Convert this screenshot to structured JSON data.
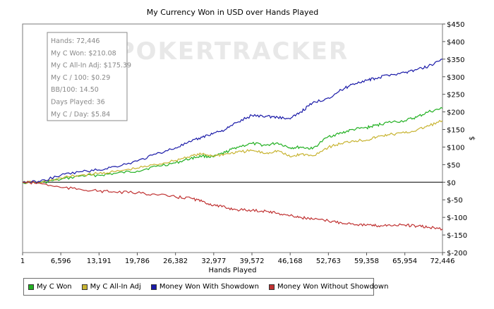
{
  "chart_data": {
    "type": "line",
    "title": "My Currency Won in USD over Hands Played",
    "xlabel": "Hands Played",
    "ylabel": "$",
    "xlim": [
      1,
      72446
    ],
    "ylim": [
      -200,
      450
    ],
    "x_ticks": [
      1,
      6596,
      13191,
      19786,
      26382,
      32977,
      39572,
      46168,
      52763,
      59358,
      65954,
      72446
    ],
    "x_tick_labels": [
      "1",
      "6,596",
      "13,191",
      "19,786",
      "26,382",
      "32,977",
      "39,572",
      "46,168",
      "52,763",
      "59,358",
      "65,954",
      "72,446"
    ],
    "y_ticks": [
      -200,
      -150,
      -100,
      -50,
      0,
      50,
      100,
      150,
      200,
      250,
      300,
      350,
      400,
      450
    ],
    "y_tick_labels": [
      "$-200",
      "$-150",
      "$-100",
      "$-50",
      "$0",
      "$50",
      "$100",
      "$150",
      "$200",
      "$250",
      "$300",
      "$350",
      "$400",
      "$450"
    ],
    "watermark": "POKERTRACKER",
    "series": [
      {
        "name": "My C Won",
        "color": "#22b022",
        "x": [
          1,
          3000,
          6596,
          10000,
          13191,
          16000,
          19786,
          23000,
          26382,
          29000,
          31000,
          32977,
          35000,
          37000,
          39572,
          42000,
          44000,
          46168,
          48000,
          50000,
          52763,
          55000,
          57000,
          59358,
          61000,
          63000,
          65954,
          68000,
          70000,
          72446
        ],
        "y": [
          0,
          -2,
          8,
          18,
          20,
          25,
          32,
          45,
          55,
          68,
          75,
          72,
          85,
          100,
          110,
          105,
          112,
          98,
          100,
          95,
          130,
          140,
          150,
          155,
          162,
          170,
          175,
          185,
          200,
          210
        ]
      },
      {
        "name": "My C All-In Adj",
        "color": "#c8b432",
        "x": [
          1,
          3000,
          6596,
          10000,
          13191,
          16000,
          19786,
          23000,
          26382,
          29000,
          31000,
          32977,
          35000,
          37000,
          39572,
          42000,
          44000,
          46168,
          48000,
          50000,
          52763,
          55000,
          57000,
          59358,
          61000,
          63000,
          65954,
          68000,
          70000,
          72446
        ],
        "y": [
          0,
          -1,
          12,
          20,
          25,
          30,
          40,
          50,
          62,
          75,
          80,
          75,
          80,
          85,
          90,
          82,
          90,
          72,
          80,
          75,
          100,
          110,
          118,
          120,
          128,
          135,
          140,
          148,
          160,
          175
        ]
      },
      {
        "name": "Money Won With Showdown",
        "color": "#1a1aa8",
        "x": [
          1,
          3000,
          6596,
          10000,
          13191,
          16000,
          19786,
          23000,
          26382,
          29000,
          31000,
          32977,
          35000,
          37000,
          39572,
          42000,
          44000,
          46168,
          48000,
          50000,
          52763,
          55000,
          57000,
          59358,
          61000,
          63000,
          65954,
          68000,
          70000,
          72446
        ],
        "y": [
          0,
          2,
          20,
          30,
          35,
          45,
          60,
          80,
          98,
          115,
          128,
          140,
          150,
          170,
          190,
          188,
          185,
          180,
          200,
          225,
          240,
          262,
          280,
          290,
          295,
          305,
          312,
          320,
          330,
          350
        ]
      },
      {
        "name": "Money Won Without Showdown",
        "color": "#c03232",
        "x": [
          1,
          3000,
          6596,
          10000,
          13191,
          16000,
          19786,
          23000,
          26382,
          29000,
          31000,
          32977,
          35000,
          37000,
          39572,
          42000,
          44000,
          46168,
          48000,
          50000,
          52763,
          55000,
          57000,
          59358,
          61000,
          63000,
          65954,
          68000,
          70000,
          72446
        ],
        "y": [
          0,
          -3,
          -15,
          -20,
          -25,
          -28,
          -30,
          -35,
          -42,
          -45,
          -55,
          -65,
          -72,
          -78,
          -80,
          -82,
          -88,
          -95,
          -100,
          -105,
          -110,
          -115,
          -118,
          -122,
          -124,
          -122,
          -122,
          -125,
          -128,
          -133
        ]
      }
    ],
    "stats": [
      "Hands: 72,446",
      "My C Won: $210.08",
      "My C All-In Adj: $175.39",
      "My C / 100: $0.29",
      "BB/100: 14.50",
      "Days Played: 36",
      "My C / Day: $5.84"
    ]
  }
}
